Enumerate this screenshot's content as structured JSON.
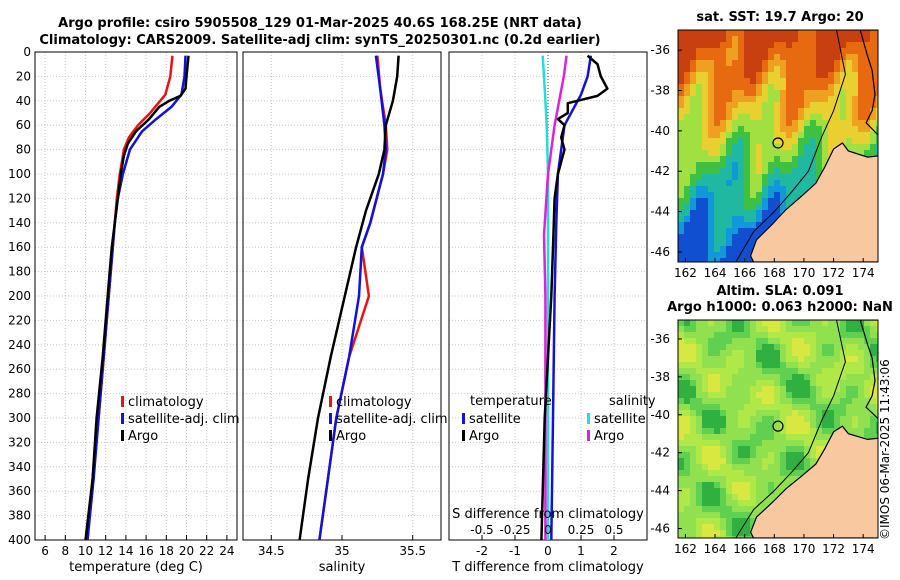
{
  "title": {
    "line1": "Argo profile: csiro 5905508_129 01-Mar-2025 40.6S 168.25E (NRT data)",
    "line2": "Climatology: CARS2009. Satellite-adj clim: synTS_20250301.nc (0.2d earlier)"
  },
  "colors": {
    "climatology": "#ee1111",
    "satellite": "#1111dd",
    "argo": "#000000",
    "sal_satellite": "#22dddd",
    "sal_argo": "#dd22dd",
    "land": "#f8c8a0"
  },
  "depth_ticks": [
    "0",
    "20",
    "40",
    "60",
    "80",
    "100",
    "120",
    "140",
    "160",
    "180",
    "200",
    "220",
    "240",
    "260",
    "280",
    "300",
    "320",
    "340",
    "360",
    "380",
    "400"
  ],
  "chart_data": [
    {
      "type": "line",
      "name": "temperature",
      "xlabel": "temperature (deg C)",
      "ylabel": "",
      "xlim": [
        5,
        25
      ],
      "ylim": [
        400,
        0
      ],
      "xticks": [
        "6",
        "8",
        "10",
        "12",
        "14",
        "16",
        "18",
        "20",
        "22",
        "24"
      ],
      "legend": [
        "climatology",
        "satellite-adj. clim",
        "Argo"
      ],
      "series": [
        {
          "name": "climatology",
          "depth": [
            3,
            20,
            35,
            50,
            60,
            70,
            80,
            90,
            100,
            120,
            140,
            160,
            200,
            250,
            300,
            350,
            400
          ],
          "values": [
            18.6,
            18.4,
            17.9,
            16.4,
            15.2,
            14.3,
            13.8,
            13.6,
            13.4,
            13.1,
            12.9,
            12.7,
            12.3,
            11.8,
            11.3,
            10.7,
            10.2
          ]
        },
        {
          "name": "satellite-adj. clim",
          "depth": [
            3,
            20,
            35,
            45,
            55,
            65,
            80,
            100,
            120,
            140,
            160,
            200,
            250,
            300,
            350,
            400
          ],
          "values": [
            19.9,
            19.8,
            19.5,
            18.5,
            17.0,
            15.6,
            14.4,
            13.7,
            13.2,
            12.9,
            12.7,
            12.3,
            11.8,
            11.3,
            10.8,
            10.2
          ]
        },
        {
          "name": "Argo",
          "depth": [
            3,
            20,
            30,
            36,
            40,
            45,
            55,
            65,
            75,
            85,
            100,
            120,
            140,
            160,
            180,
            200,
            250,
            300,
            350,
            400
          ],
          "values": [
            20.2,
            20.0,
            19.9,
            19.4,
            18.3,
            17.3,
            16.3,
            15.0,
            14.2,
            13.8,
            13.5,
            13.2,
            12.9,
            12.6,
            12.4,
            12.2,
            11.7,
            11.1,
            10.7,
            10.0
          ]
        }
      ]
    },
    {
      "type": "line",
      "name": "salinity",
      "xlabel": "salinity",
      "ylabel": "",
      "xlim": [
        34.3,
        35.7
      ],
      "ylim": [
        400,
        0
      ],
      "xticks": [
        "34.5",
        "35",
        "35.5"
      ],
      "legend": [
        "climatology",
        "satellite-adj. clim",
        "Argo"
      ],
      "series": [
        {
          "name": "climatology",
          "depth": [
            3,
            30,
            60,
            80,
            100,
            140,
            160,
            200,
            250,
            300,
            350,
            400
          ],
          "values": [
            35.25,
            35.27,
            35.31,
            35.32,
            35.29,
            35.2,
            35.14,
            35.19,
            35.05,
            34.96,
            34.9,
            34.84
          ]
        },
        {
          "name": "satellite-adj. clim",
          "depth": [
            3,
            30,
            60,
            80,
            100,
            140,
            160,
            200,
            250,
            300,
            350,
            400
          ],
          "values": [
            35.24,
            35.27,
            35.3,
            35.31,
            35.29,
            35.2,
            35.14,
            35.12,
            35.05,
            34.96,
            34.9,
            34.84
          ]
        },
        {
          "name": "Argo",
          "depth": [
            3,
            20,
            40,
            60,
            80,
            100,
            130,
            160,
            200,
            250,
            300,
            350,
            400
          ],
          "values": [
            35.4,
            35.39,
            35.36,
            35.31,
            35.3,
            35.26,
            35.17,
            35.1,
            35.02,
            34.92,
            34.83,
            34.76,
            34.7
          ]
        }
      ]
    },
    {
      "type": "line",
      "name": "difference",
      "xlabel": "T difference from climatology",
      "xlabel_top": "S difference from climatology",
      "xlim": [
        -3,
        3
      ],
      "ylim": [
        400,
        0
      ],
      "xticks": [
        "-2",
        "-1",
        "0",
        "1",
        "2"
      ],
      "xticks_top": [
        "-0.5",
        "-0.25",
        "0",
        "0.25",
        "0.5"
      ],
      "legend_temperature": {
        "heading": "temperature",
        "items": [
          "satellite",
          "Argo"
        ]
      },
      "legend_salinity": {
        "heading": "salinity",
        "items": [
          "satellite",
          "Argo"
        ]
      },
      "series": [
        {
          "name": "T satellite",
          "depth": [
            3,
            20,
            35,
            45,
            60,
            80,
            100,
            140,
            200,
            300,
            400
          ],
          "values": [
            1.3,
            1.2,
            1.0,
            0.8,
            0.5,
            0.4,
            0.3,
            0.25,
            0.2,
            0.15,
            0.1
          ]
        },
        {
          "name": "T Argo",
          "depth": [
            3,
            10,
            20,
            30,
            36,
            42,
            50,
            55,
            60,
            70,
            80,
            100,
            120,
            160,
            200,
            300,
            400
          ],
          "values": [
            1.2,
            1.5,
            1.6,
            1.8,
            1.5,
            0.6,
            0.6,
            0.3,
            0.5,
            0.4,
            0.5,
            0.3,
            0.2,
            0.15,
            0.1,
            -0.1,
            -0.2
          ]
        },
        {
          "name": "S satellite",
          "depth": [
            3,
            20,
            40,
            60,
            100,
            200,
            300,
            400
          ],
          "values": [
            -0.04,
            -0.03,
            -0.02,
            -0.01,
            0.0,
            0.0,
            0.0,
            0.0
          ]
        },
        {
          "name": "S Argo",
          "depth": [
            3,
            20,
            60,
            100,
            150,
            200,
            300,
            400
          ],
          "values": [
            0.14,
            0.12,
            0.05,
            0.0,
            -0.03,
            -0.02,
            -0.02,
            -0.02
          ]
        }
      ]
    },
    {
      "type": "heatmap",
      "name": "sst_map",
      "title": "sat. SST: 19.7 Argo: 20",
      "lon_range": [
        161.5,
        175
      ],
      "lat_range": [
        -46.5,
        -35
      ],
      "xticks": [
        "162",
        "164",
        "166",
        "168",
        "170",
        "172",
        "174"
      ],
      "yticks": [
        "-36",
        "-38",
        "-40",
        "-42",
        "-44",
        "-46"
      ],
      "argo_position": {
        "lon": 168.25,
        "lat": -40.6
      }
    },
    {
      "type": "heatmap",
      "name": "sla_map",
      "title_line1": "Altim. SLA: 0.091",
      "title_line2": "Argo h1000: 0.063 h2000: NaN",
      "lon_range": [
        161.5,
        175
      ],
      "lat_range": [
        -46.5,
        -35
      ],
      "xticks": [
        "162",
        "164",
        "166",
        "168",
        "170",
        "172",
        "174"
      ],
      "yticks": [
        "-36",
        "-38",
        "-40",
        "-42",
        "-44",
        "-46"
      ],
      "argo_position": {
        "lon": 168.25,
        "lat": -40.6
      }
    }
  ],
  "credit": "©IMOS 06-Mar-2025 11:43:06"
}
